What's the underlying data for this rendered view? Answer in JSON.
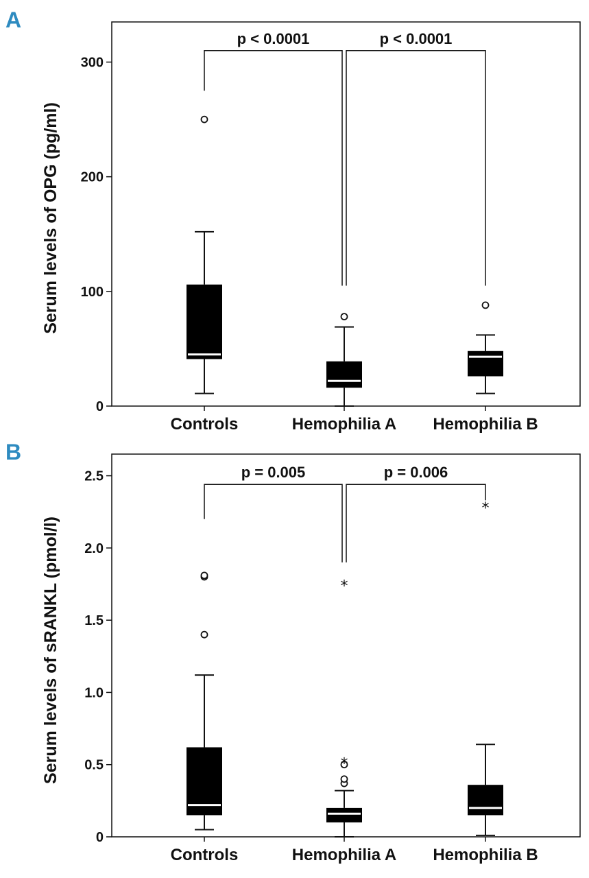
{
  "colors": {
    "panel_letter": "#2e8bc0",
    "box_fill": "#000000",
    "median": "#ffffff",
    "axis": "#111111"
  },
  "chart_data": [
    {
      "type": "box",
      "panel": "A",
      "ylabel": "Serum levels of OPG (pg/ml)",
      "ylim": [
        0,
        335
      ],
      "yticks": [
        0,
        100,
        200,
        300
      ],
      "ytick_labels": [
        "0",
        "100",
        "200",
        "300"
      ],
      "categories": [
        "Controls",
        "Hemophilia A",
        "Hemophilia B"
      ],
      "boxes": [
        {
          "q1": 41,
          "median": 45,
          "q3": 106,
          "whisker_low": 11,
          "whisker_high": 152,
          "outliers": [
            250
          ],
          "extremes": []
        },
        {
          "q1": 16,
          "median": 22,
          "q3": 39,
          "whisker_low": 0,
          "whisker_high": 69,
          "outliers": [
            78
          ],
          "extremes": []
        },
        {
          "q1": 26,
          "median": 43,
          "q3": 48,
          "whisker_low": 11,
          "whisker_high": 62,
          "outliers": [
            88
          ],
          "extremes": []
        }
      ],
      "comparisons": [
        {
          "from": 0,
          "to": 1,
          "label": "p < 0.0001",
          "bar_y": 310,
          "from_y": 275,
          "to_y": 105
        },
        {
          "from": 1,
          "to": 2,
          "label": "p < 0.0001",
          "bar_y": 310,
          "from_y": 105,
          "to_y": 105
        }
      ]
    },
    {
      "type": "box",
      "panel": "B",
      "ylabel": "Serum levels of sRANKL (pmol/l)",
      "ylim": [
        0,
        2.65
      ],
      "yticks": [
        0,
        0.5,
        1.0,
        1.5,
        2.0,
        2.5
      ],
      "ytick_labels": [
        "0",
        "0.5",
        "1.0",
        "1.5",
        "2.0",
        "2.5"
      ],
      "categories": [
        "Controls",
        "Hemophilia A",
        "Hemophilia B"
      ],
      "boxes": [
        {
          "q1": 0.15,
          "median": 0.22,
          "q3": 0.62,
          "whisker_low": 0.05,
          "whisker_high": 1.12,
          "outliers": [
            1.4,
            1.8,
            1.81
          ],
          "extremes": []
        },
        {
          "q1": 0.1,
          "median": 0.16,
          "q3": 0.2,
          "whisker_low": 0.0,
          "whisker_high": 0.32,
          "outliers": [
            0.37,
            0.4,
            0.5
          ],
          "extremes": [
            0.52,
            1.75
          ]
        },
        {
          "q1": 0.15,
          "median": 0.2,
          "q3": 0.36,
          "whisker_low": 0.01,
          "whisker_high": 0.64,
          "outliers": [],
          "extremes": [
            2.29
          ]
        }
      ],
      "comparisons": [
        {
          "from": 0,
          "to": 1,
          "label": "p = 0.005",
          "bar_y": 2.44,
          "from_y": 2.2,
          "to_y": 1.9
        },
        {
          "from": 1,
          "to": 2,
          "label": "p = 0.006",
          "bar_y": 2.44,
          "from_y": 1.9,
          "to_y": 2.33
        }
      ]
    }
  ]
}
